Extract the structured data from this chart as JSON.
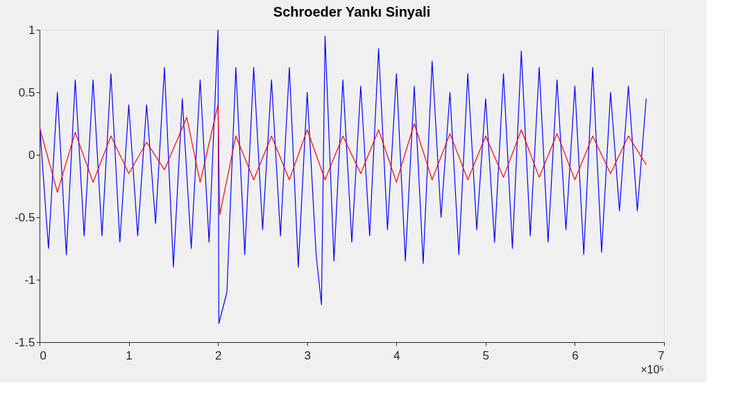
{
  "chart_data": {
    "type": "line",
    "title": "Schroeder Yankı Sinyali",
    "xlim": [
      0,
      7
    ],
    "xticks": [
      0,
      1,
      2,
      3,
      4,
      5,
      6,
      7
    ],
    "ylim": [
      -1.5,
      1
    ],
    "yticks": [
      -1.5,
      -1,
      -0.5,
      0,
      0.5,
      1
    ],
    "grid": false,
    "line_style": "solid",
    "annotations": [
      "×10⁵"
    ],
    "series": [
      {
        "color": "#0000ff",
        "x": [
          0,
          0.1,
          0.2,
          0.3,
          0.4,
          0.5,
          0.6,
          0.7,
          0.8,
          0.9,
          1.0,
          1.1,
          1.2,
          1.3,
          1.4,
          1.5,
          1.6,
          1.7,
          1.8,
          1.9,
          2.0,
          2.01,
          2.1,
          2.2,
          2.3,
          2.4,
          2.5,
          2.6,
          2.7,
          2.8,
          2.9,
          3.0,
          3.1,
          3.16,
          3.2,
          3.3,
          3.4,
          3.5,
          3.6,
          3.7,
          3.8,
          3.9,
          4.0,
          4.1,
          4.2,
          4.3,
          4.4,
          4.5,
          4.6,
          4.7,
          4.8,
          4.9,
          5.0,
          5.1,
          5.2,
          5.3,
          5.4,
          5.5,
          5.6,
          5.7,
          5.8,
          5.9,
          6.0,
          6.1,
          6.2,
          6.3,
          6.4,
          6.5,
          6.6,
          6.7,
          6.8
        ],
        "values": [
          0.25,
          -0.75,
          0.5,
          -0.8,
          0.6,
          -0.65,
          0.6,
          -0.65,
          0.65,
          -0.7,
          0.4,
          -0.65,
          0.4,
          -0.55,
          0.7,
          -0.9,
          0.45,
          -0.75,
          0.6,
          -0.7,
          1.0,
          -1.35,
          -1.1,
          0.7,
          -0.8,
          0.7,
          -0.6,
          0.6,
          -0.65,
          0.7,
          -0.9,
          0.5,
          -0.8,
          -1.2,
          0.95,
          -0.85,
          0.6,
          -0.7,
          0.55,
          -0.65,
          0.85,
          -0.6,
          0.65,
          -0.85,
          0.55,
          -0.87,
          0.75,
          -0.5,
          0.5,
          -0.8,
          0.65,
          -0.6,
          0.45,
          -0.7,
          0.65,
          -0.75,
          0.83,
          -0.65,
          0.7,
          -0.7,
          0.6,
          -0.6,
          0.55,
          -0.8,
          0.7,
          -0.78,
          0.5,
          -0.45,
          0.55,
          -0.45,
          0.45
        ]
      },
      {
        "color": "#ff0000",
        "x": [
          0,
          0.2,
          0.4,
          0.6,
          0.8,
          1.0,
          1.2,
          1.4,
          1.65,
          1.8,
          2.0,
          2.02,
          2.2,
          2.4,
          2.6,
          2.8,
          3.0,
          3.2,
          3.4,
          3.6,
          3.8,
          4.0,
          4.2,
          4.4,
          4.6,
          4.8,
          5.0,
          5.2,
          5.4,
          5.6,
          5.8,
          6.0,
          6.2,
          6.4,
          6.6,
          6.8
        ],
        "values": [
          0.22,
          -0.3,
          0.18,
          -0.22,
          0.15,
          -0.15,
          0.1,
          -0.12,
          0.3,
          -0.22,
          0.4,
          -0.48,
          0.15,
          -0.2,
          0.15,
          -0.2,
          0.2,
          -0.2,
          0.15,
          -0.15,
          0.2,
          -0.22,
          0.25,
          -0.2,
          0.17,
          -0.2,
          0.15,
          -0.18,
          0.2,
          -0.18,
          0.17,
          -0.2,
          0.15,
          -0.15,
          0.15,
          -0.08
        ]
      }
    ]
  }
}
